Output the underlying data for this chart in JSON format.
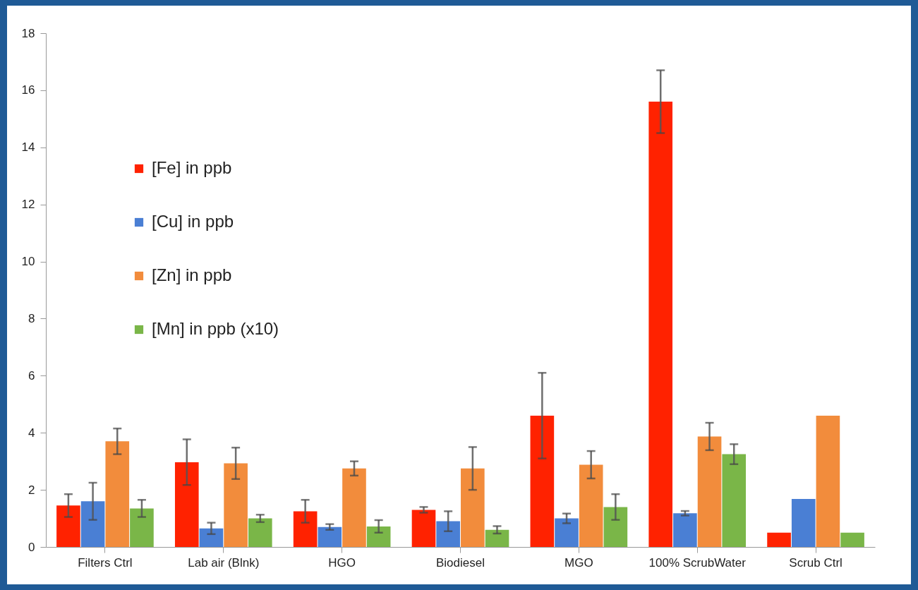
{
  "chart_data": {
    "type": "bar",
    "categories": [
      "Filters Ctrl",
      "Lab air (Blnk)",
      "HGO",
      "Biodiesel",
      "MGO",
      "100% ScrubWater",
      "Scrub Ctrl"
    ],
    "series": [
      {
        "name": "[Fe] in ppb",
        "color": "#ff2200",
        "values": [
          1.45,
          2.97,
          1.25,
          1.3,
          4.6,
          15.6,
          0.5
        ],
        "errors": [
          0.4,
          0.8,
          0.4,
          0.1,
          1.5,
          1.1,
          null
        ]
      },
      {
        "name": "[Cu] in ppb",
        "color": "#4a7fd4",
        "values": [
          1.6,
          0.65,
          0.7,
          0.9,
          1.0,
          1.18,
          1.68
        ],
        "errors": [
          0.65,
          0.2,
          0.1,
          0.35,
          0.17,
          0.08,
          null
        ]
      },
      {
        "name": "[Zn] in ppb",
        "color": "#f28c3c",
        "values": [
          3.7,
          2.93,
          2.75,
          2.75,
          2.88,
          3.87,
          4.6
        ],
        "errors": [
          0.45,
          0.55,
          0.25,
          0.75,
          0.48,
          0.48,
          null
        ]
      },
      {
        "name": "[Mn] in ppb (x10)",
        "color": "#7ab648",
        "values": [
          1.35,
          1.0,
          0.72,
          0.6,
          1.4,
          3.25,
          0.5
        ],
        "errors": [
          0.3,
          0.13,
          0.22,
          0.13,
          0.45,
          0.35,
          null
        ]
      }
    ],
    "ylim": [
      0,
      18
    ],
    "yticks": [
      0,
      2,
      4,
      6,
      8,
      10,
      12,
      14,
      16,
      18
    ],
    "grid": false,
    "legend": "top left"
  }
}
